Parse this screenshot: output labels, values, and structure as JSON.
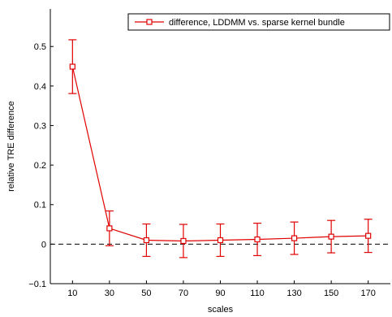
{
  "chart_data": {
    "type": "line",
    "x": [
      10,
      30,
      50,
      70,
      90,
      110,
      130,
      150,
      170
    ],
    "series": [
      {
        "name": "difference, LDDMM vs. sparse kernel bundle",
        "values": [
          0.449,
          0.04,
          0.01,
          0.008,
          0.01,
          0.012,
          0.015,
          0.019,
          0.021
        ],
        "error": [
          0.068,
          0.044,
          0.041,
          0.042,
          0.041,
          0.041,
          0.041,
          0.041,
          0.042
        ],
        "color": "#e00000",
        "marker": "square"
      }
    ],
    "xlabel": "scales",
    "ylabel": "relative TRE difference",
    "xticks": [
      10,
      30,
      50,
      70,
      90,
      110,
      130,
      150,
      170
    ],
    "yticks": [
      -0.1,
      0,
      0.1,
      0.2,
      0.3,
      0.4,
      0.5
    ],
    "ytick_labels": [
      "−0.1",
      "0",
      "0.1",
      "0.2",
      "0.3",
      "0.4",
      "0.5"
    ],
    "xlim": [
      -2,
      182
    ],
    "ylim": [
      -0.1,
      0.595
    ],
    "reference_line": {
      "y": 0,
      "style": "dashed",
      "color": "#000000"
    },
    "legend_position": "top-right",
    "grid": false
  }
}
